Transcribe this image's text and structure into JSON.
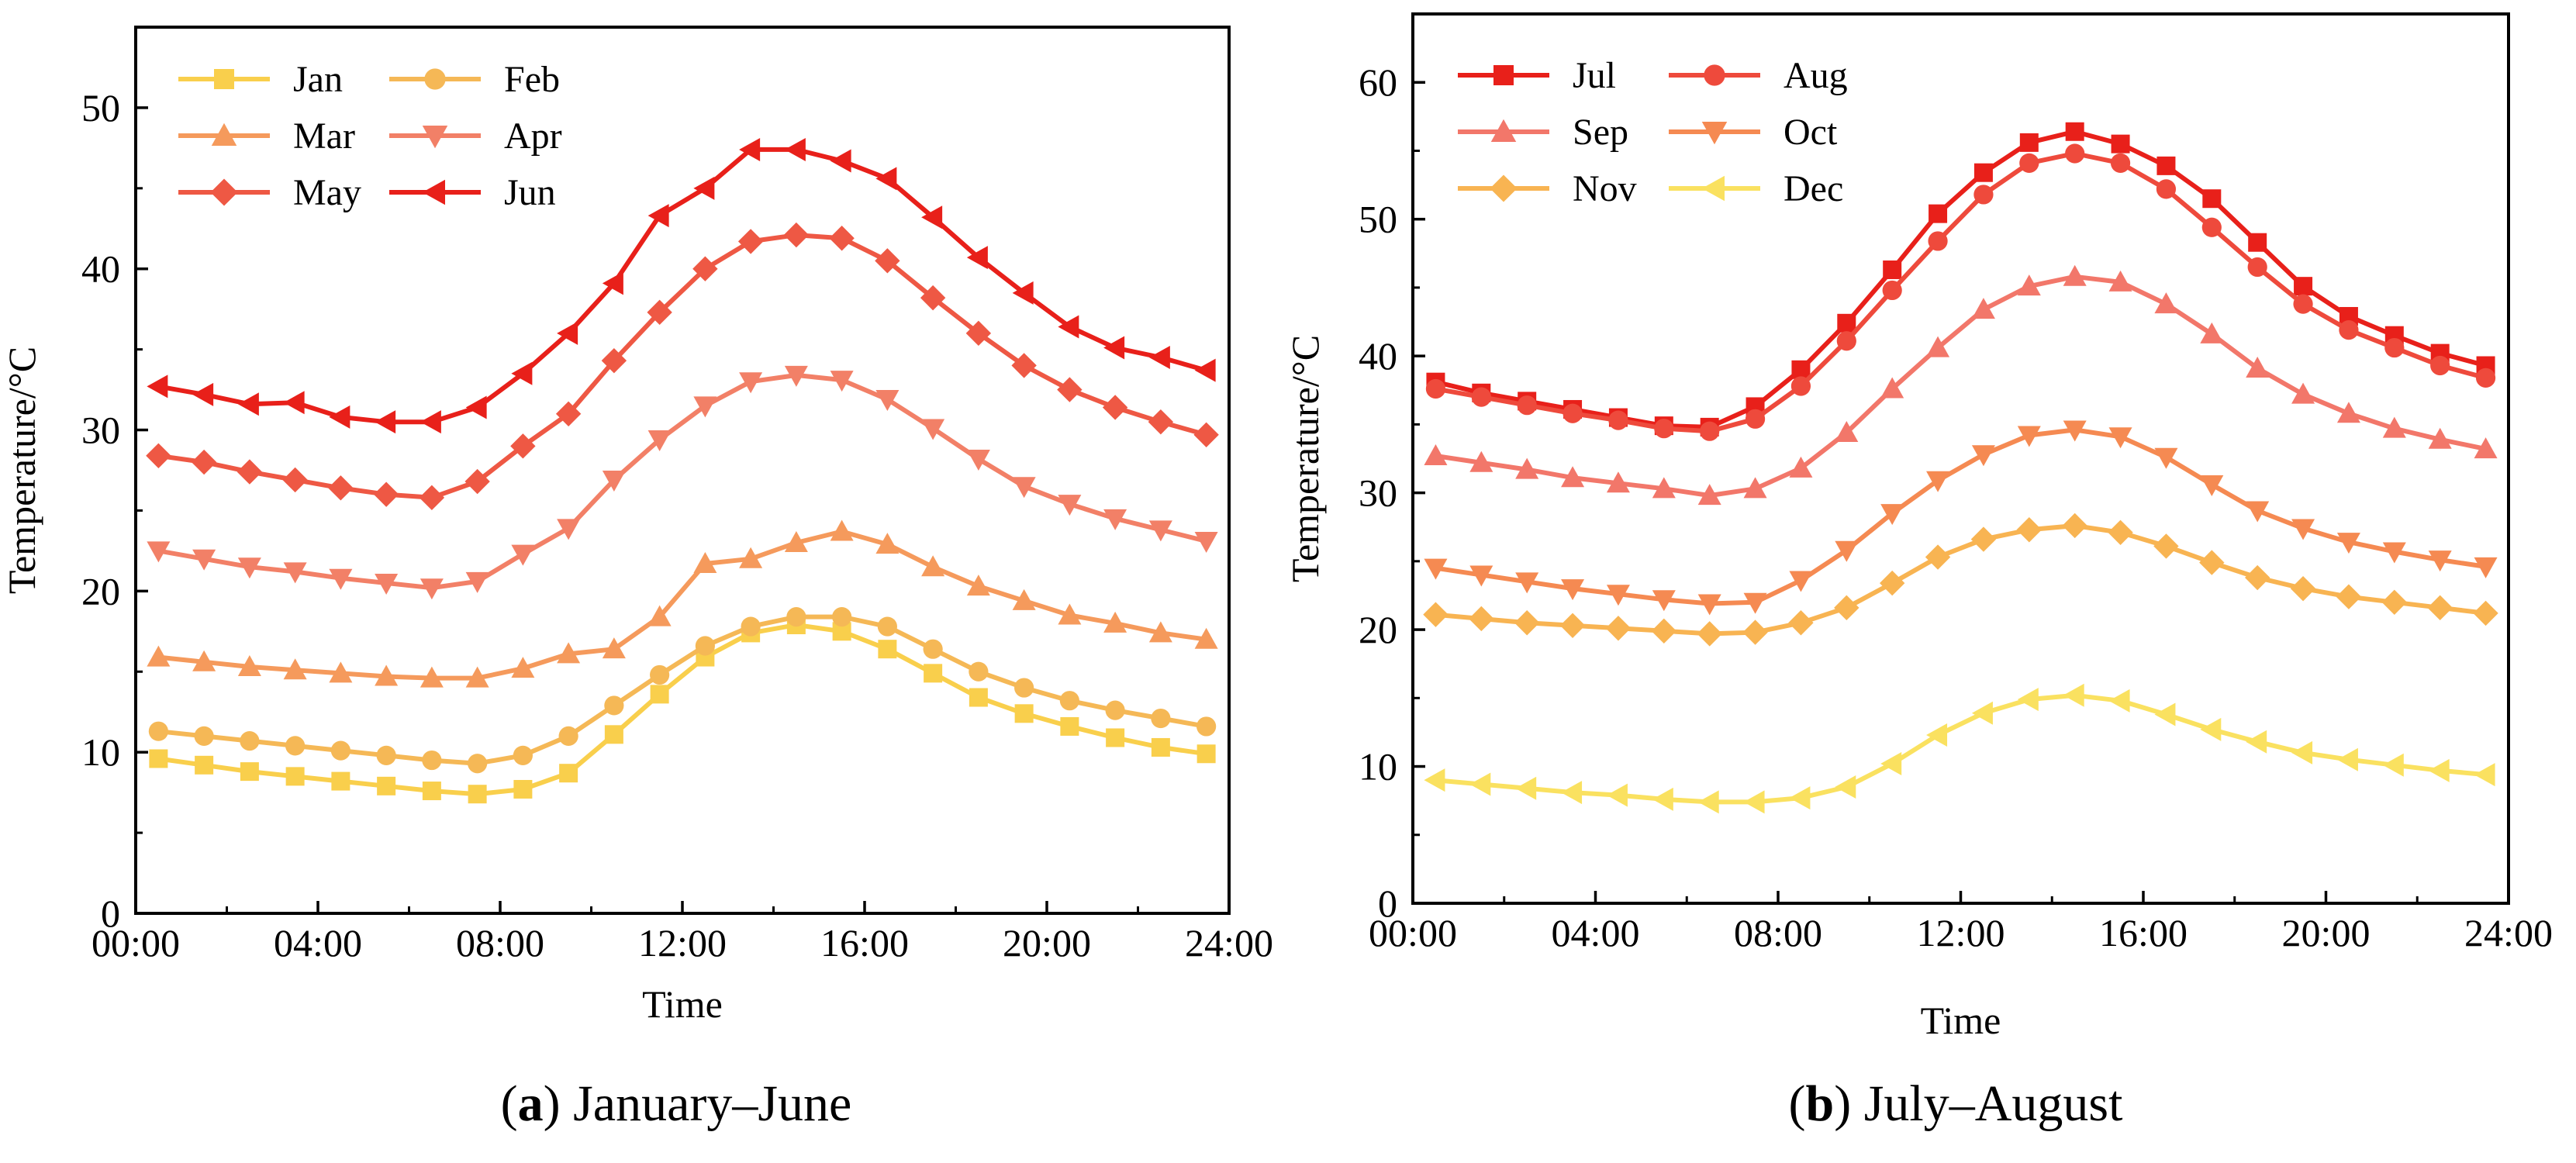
{
  "chart_data": [
    {
      "type": "line",
      "caption_letter": "a",
      "caption_text": "January–June",
      "xlabel": "Time",
      "ylabel": "Temperature/°C",
      "ylim": [
        0,
        55
      ],
      "yticks": [
        0,
        10,
        20,
        30,
        40,
        50
      ],
      "xlim": [
        0,
        24
      ],
      "xticks": [
        0,
        4,
        8,
        12,
        16,
        20,
        24
      ],
      "xtick_labels": [
        "00:00",
        "04:00",
        "08:00",
        "12:00",
        "16:00",
        "20:00",
        "24:00"
      ],
      "grid": false,
      "legend": "top-left",
      "x": [
        0.5,
        1.5,
        2.5,
        3.5,
        4.5,
        5.5,
        6.5,
        7.5,
        8.5,
        9.5,
        10.5,
        11.5,
        12.5,
        13.5,
        14.5,
        15.5,
        16.5,
        17.5,
        18.5,
        19.5,
        20.5,
        21.5,
        22.5,
        23.5
      ],
      "series": [
        {
          "name": "Jan",
          "color": "#f9cf4c",
          "marker": "square",
          "values": [
            9.6,
            9.2,
            8.8,
            8.5,
            8.2,
            7.9,
            7.6,
            7.4,
            7.7,
            8.7,
            11.1,
            13.6,
            15.9,
            17.4,
            17.9,
            17.5,
            16.4,
            14.9,
            13.4,
            12.4,
            11.6,
            10.9,
            10.3,
            9.9
          ]
        },
        {
          "name": "Feb",
          "color": "#f5b856",
          "marker": "circle",
          "values": [
            11.3,
            11.0,
            10.7,
            10.4,
            10.1,
            9.8,
            9.5,
            9.3,
            9.8,
            11.0,
            12.9,
            14.8,
            16.6,
            17.8,
            18.4,
            18.4,
            17.8,
            16.4,
            15.0,
            14.0,
            13.2,
            12.6,
            12.1,
            11.6
          ]
        },
        {
          "name": "Mar",
          "color": "#f59a5c",
          "marker": "triangle-up",
          "values": [
            15.9,
            15.6,
            15.3,
            15.1,
            14.9,
            14.7,
            14.6,
            14.6,
            15.2,
            16.1,
            16.4,
            18.4,
            21.7,
            22.0,
            23.0,
            23.7,
            22.9,
            21.5,
            20.3,
            19.4,
            18.5,
            18.0,
            17.4,
            17.0
          ]
        },
        {
          "name": "Apr",
          "color": "#f28067",
          "marker": "triangle-down",
          "values": [
            22.5,
            22.0,
            21.5,
            21.2,
            20.8,
            20.5,
            20.2,
            20.6,
            22.3,
            23.9,
            26.9,
            29.4,
            31.5,
            33.0,
            33.4,
            33.1,
            31.9,
            30.1,
            28.2,
            26.5,
            25.4,
            24.5,
            23.8,
            23.1
          ]
        },
        {
          "name": "May",
          "color": "#ee5844",
          "marker": "diamond",
          "values": [
            28.4,
            28.0,
            27.4,
            26.9,
            26.4,
            26.0,
            25.8,
            26.8,
            29.0,
            31.0,
            34.3,
            37.3,
            40.0,
            41.7,
            42.1,
            41.9,
            40.5,
            38.2,
            36.0,
            34.0,
            32.5,
            31.4,
            30.5,
            29.7
          ]
        },
        {
          "name": "Jun",
          "color": "#e8201a",
          "marker": "triangle-left",
          "values": [
            32.7,
            32.2,
            31.6,
            31.7,
            30.8,
            30.5,
            30.5,
            31.4,
            33.5,
            36.0,
            39.1,
            43.3,
            45.0,
            47.4,
            47.4,
            46.7,
            45.6,
            43.2,
            40.7,
            38.5,
            36.4,
            35.1,
            34.5,
            33.7
          ]
        }
      ]
    },
    {
      "type": "line",
      "caption_letter": "b",
      "caption_text": "July–August",
      "xlabel": "Time",
      "ylabel": "Temperature/°C",
      "ylim": [
        0,
        65
      ],
      "yticks": [
        0,
        10,
        20,
        30,
        40,
        50,
        60
      ],
      "xlim": [
        0,
        24
      ],
      "xticks": [
        0,
        4,
        8,
        12,
        16,
        20,
        24
      ],
      "xtick_labels": [
        "00:00",
        "04:00",
        "08:00",
        "12:00",
        "16:00",
        "20:00",
        "24:00"
      ],
      "grid": false,
      "legend": "top-left",
      "x": [
        0.5,
        1.5,
        2.5,
        3.5,
        4.5,
        5.5,
        6.5,
        7.5,
        8.5,
        9.5,
        10.5,
        11.5,
        12.5,
        13.5,
        14.5,
        15.5,
        16.5,
        17.5,
        18.5,
        19.5,
        20.5,
        21.5,
        22.5,
        23.5
      ],
      "series": [
        {
          "name": "Jul",
          "color": "#e8201a",
          "marker": "square",
          "values": [
            38.1,
            37.3,
            36.7,
            36.1,
            35.5,
            34.9,
            34.8,
            36.3,
            39.0,
            42.4,
            46.3,
            50.4,
            53.4,
            55.6,
            56.4,
            55.5,
            53.9,
            51.5,
            48.3,
            45.1,
            42.9,
            41.5,
            40.2,
            39.3
          ]
        },
        {
          "name": "Aug",
          "color": "#ee4a3c",
          "marker": "circle",
          "values": [
            37.6,
            37.0,
            36.4,
            35.8,
            35.3,
            34.7,
            34.5,
            35.4,
            37.8,
            41.1,
            44.8,
            48.4,
            51.8,
            54.1,
            54.8,
            54.1,
            52.2,
            49.4,
            46.5,
            43.8,
            41.9,
            40.6,
            39.3,
            38.4
          ]
        },
        {
          "name": "Sep",
          "color": "#f2776a",
          "marker": "triangle-up",
          "values": [
            32.7,
            32.2,
            31.7,
            31.1,
            30.7,
            30.3,
            29.8,
            30.3,
            31.8,
            34.4,
            37.6,
            40.6,
            43.4,
            45.1,
            45.8,
            45.4,
            43.8,
            41.6,
            39.1,
            37.2,
            35.8,
            34.7,
            33.9,
            33.2
          ]
        },
        {
          "name": "Oct",
          "color": "#f58a52",
          "marker": "triangle-down",
          "values": [
            24.5,
            24.0,
            23.5,
            23.0,
            22.6,
            22.2,
            21.9,
            22.0,
            23.6,
            25.8,
            28.5,
            30.9,
            32.8,
            34.2,
            34.6,
            34.1,
            32.6,
            30.6,
            28.7,
            27.4,
            26.4,
            25.7,
            25.1,
            24.6
          ]
        },
        {
          "name": "Nov",
          "color": "#f8b452",
          "marker": "diamond",
          "values": [
            21.1,
            20.8,
            20.5,
            20.3,
            20.1,
            19.9,
            19.7,
            19.8,
            20.5,
            21.6,
            23.4,
            25.3,
            26.6,
            27.3,
            27.6,
            27.1,
            26.1,
            24.9,
            23.8,
            23.0,
            22.4,
            22.0,
            21.6,
            21.2
          ]
        },
        {
          "name": "Dec",
          "color": "#fae160",
          "marker": "triangle-left",
          "values": [
            9.0,
            8.7,
            8.4,
            8.1,
            7.9,
            7.6,
            7.4,
            7.4,
            7.7,
            8.5,
            10.2,
            12.3,
            13.9,
            14.9,
            15.2,
            14.8,
            13.8,
            12.7,
            11.8,
            11.0,
            10.5,
            10.1,
            9.7,
            9.4
          ]
        }
      ]
    }
  ]
}
